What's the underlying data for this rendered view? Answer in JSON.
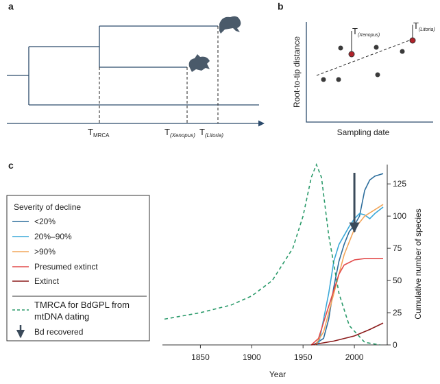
{
  "panel_a": {
    "label": "a",
    "t_mrca": {
      "t": "T",
      "sub": "MRCA"
    },
    "t_xenopus": {
      "t": "T",
      "sub": "(Xenopus)"
    },
    "t_litoria": {
      "t": "T",
      "sub": "(Litoria)"
    }
  },
  "panel_b": {
    "label": "b",
    "y_label": "Root-to-tip distance",
    "x_label": "Sampling date",
    "t_xenopus": {
      "t": "T",
      "sub": "(Xenopus)"
    },
    "t_litoria": {
      "t": "T",
      "sub": "(Litoria)"
    }
  },
  "chart_data": {
    "type": "line",
    "panel_label": "c",
    "x_label": "Year",
    "y2_label": "Cumulative number of species",
    "xlim": [
      1813,
      2032
    ],
    "xticks": [
      1850,
      1900,
      1950,
      2000
    ],
    "y2lim": [
      0,
      140
    ],
    "y2ticks": [
      0,
      25,
      50,
      75,
      100,
      125
    ],
    "legend_title": "Severity of decline",
    "series": [
      {
        "name": "<20%",
        "color": "#2c6d9c",
        "axis": "y2",
        "x": [
          1960,
          1970,
          1975,
          1980,
          1985,
          1990,
          1995,
          2000,
          2005,
          2010,
          2015,
          2020,
          2028
        ],
        "values": [
          0,
          5,
          20,
          45,
          65,
          78,
          88,
          93,
          100,
          120,
          128,
          131,
          133
        ]
      },
      {
        "name": "20%–90%",
        "color": "#3aa8d8",
        "axis": "y2",
        "x": [
          1965,
          1975,
          1980,
          1985,
          1990,
          1995,
          2000,
          2005,
          2010,
          2015,
          2020,
          2028
        ],
        "values": [
          0,
          40,
          65,
          78,
          85,
          92,
          98,
          102,
          101,
          98,
          102,
          107
        ]
      },
      {
        "name": ">90%",
        "color": "#f2a55a",
        "axis": "y2",
        "x": [
          1962,
          1970,
          1980,
          1990,
          2000,
          2010,
          2020,
          2028
        ],
        "values": [
          0,
          10,
          40,
          70,
          90,
          100,
          105,
          109
        ]
      },
      {
        "name": "Presumed extinct",
        "color": "#e24a4a",
        "axis": "y2",
        "x": [
          1958,
          1965,
          1975,
          1985,
          1990,
          2000,
          2010,
          2028
        ],
        "values": [
          0,
          5,
          30,
          55,
          62,
          66,
          67,
          67
        ]
      },
      {
        "name": "Extinct",
        "color": "#8b1c1c",
        "axis": "y2",
        "x": [
          1958,
          1980,
          2000,
          2015,
          2028
        ],
        "values": [
          0,
          3,
          7,
          12,
          17
        ]
      },
      {
        "name": "TMRCA for BdGPL from mtDNA dating",
        "color": "#2a9a6a",
        "axis": "y2",
        "dashed": true,
        "x": [
          1815,
          1850,
          1880,
          1900,
          1920,
          1940,
          1950,
          1958,
          1963,
          1968,
          1975,
          1985,
          1995,
          2010,
          2025
        ],
        "values": [
          20,
          25,
          31,
          38,
          50,
          75,
          100,
          130,
          140,
          130,
          85,
          40,
          15,
          2,
          0
        ]
      }
    ],
    "recovery_arrow": {
      "label": "Bd recovered",
      "x": 2000
    }
  }
}
